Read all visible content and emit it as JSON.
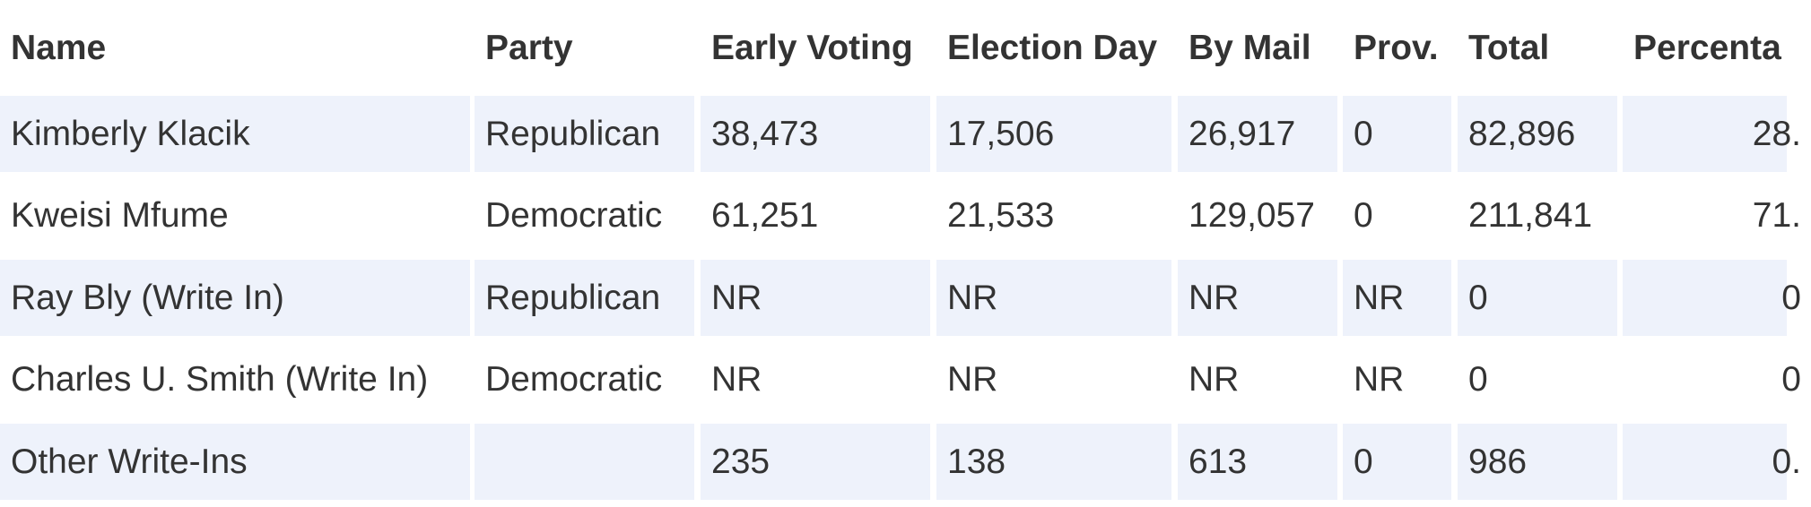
{
  "table": {
    "header": [
      "Name",
      "Party",
      "Early Voting",
      "Election Day",
      "By Mail",
      "Prov.",
      "Total",
      "Percenta"
    ],
    "rows": [
      [
        "Kimberly Klacik",
        "Republican",
        "38,473",
        "17,506",
        "26,917",
        "0",
        "82,896",
        "28."
      ],
      [
        "Kweisi Mfume",
        "Democratic",
        "61,251",
        "21,533",
        "129,057",
        "0",
        "211,841",
        "71."
      ],
      [
        "Ray Bly (Write In)",
        "Republican",
        "NR",
        "NR",
        "NR",
        "NR",
        "0",
        "0"
      ],
      [
        "Charles U. Smith (Write In)",
        "Democratic",
        "NR",
        "NR",
        "NR",
        "NR",
        "0",
        "0"
      ],
      [
        "Other Write-Ins",
        null,
        "235",
        "138",
        "613",
        "0",
        "986",
        "0."
      ]
    ]
  }
}
